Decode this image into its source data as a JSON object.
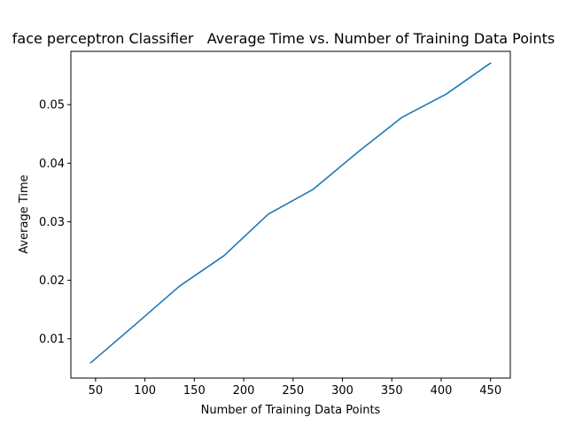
{
  "chart_data": {
    "type": "line",
    "title": "face perceptron Classifier   Average Time vs. Number of Training Data Points",
    "xlabel": "Number of Training Data Points",
    "ylabel": "Average Time",
    "xlim": [
      25,
      470
    ],
    "ylim": [
      0.0033,
      0.0591
    ],
    "xticks": [
      50,
      100,
      150,
      200,
      250,
      300,
      350,
      400,
      450
    ],
    "xtick_labels": [
      "50",
      "100",
      "150",
      "200",
      "250",
      "300",
      "350",
      "400",
      "450"
    ],
    "yticks": [
      0.01,
      0.02,
      0.03,
      0.04,
      0.05
    ],
    "ytick_labels": [
      "0.01",
      "0.02",
      "0.03",
      "0.04",
      "0.05"
    ],
    "grid": false,
    "series": [
      {
        "color": "#1f77b4",
        "x": [
          45,
          90,
          135,
          180,
          225,
          270,
          315,
          360,
          405,
          450
        ],
        "y": [
          0.0059,
          0.0124,
          0.019,
          0.0242,
          0.0313,
          0.0355,
          0.0418,
          0.0478,
          0.0518,
          0.0571
        ]
      }
    ]
  }
}
